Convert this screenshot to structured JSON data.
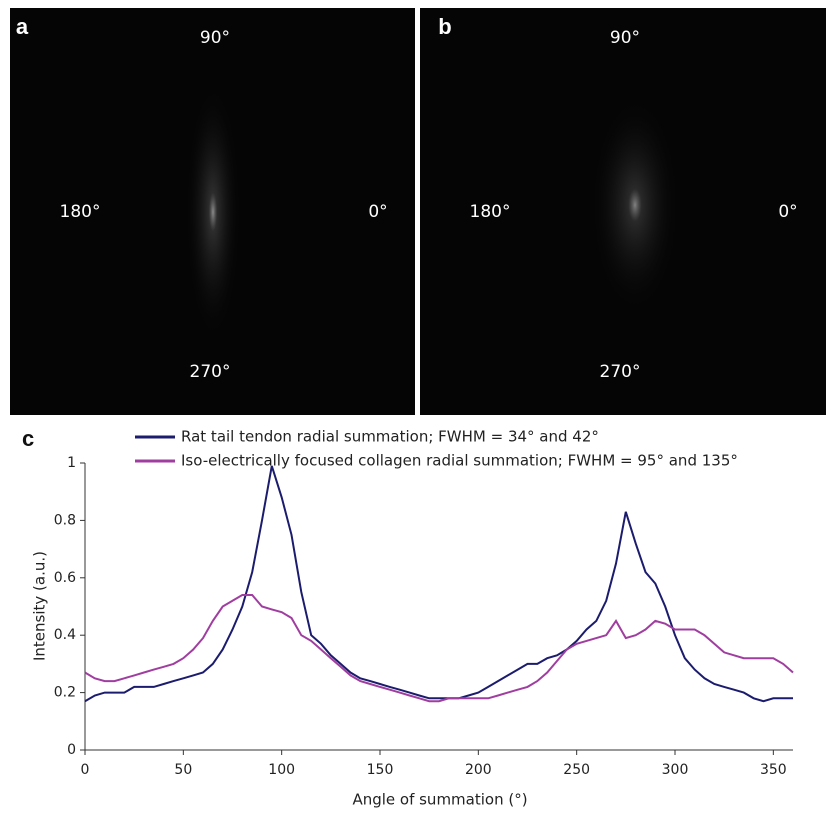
{
  "panels": [
    {
      "label": "a",
      "top": "90°",
      "left": "180°",
      "right": "0°",
      "bottom": "270°"
    },
    {
      "label": "b",
      "top": "90°",
      "left": "180°",
      "right": "0°",
      "bottom": "270°"
    }
  ],
  "chart_data": {
    "type": "line",
    "label": "c",
    "x_label": "Angle of summation (°)",
    "y_label": "Intensity (a.u.)",
    "xlim": [
      0,
      360
    ],
    "ylim": [
      0,
      1
    ],
    "xticks": [
      0,
      50,
      100,
      150,
      200,
      250,
      300,
      350
    ],
    "yticks": [
      0,
      0.2,
      0.4,
      0.6,
      0.8,
      1
    ],
    "x": [
      0,
      5,
      10,
      15,
      20,
      25,
      30,
      35,
      40,
      45,
      50,
      55,
      60,
      65,
      70,
      75,
      80,
      85,
      90,
      95,
      100,
      105,
      110,
      115,
      120,
      125,
      130,
      135,
      140,
      145,
      150,
      155,
      160,
      165,
      170,
      175,
      180,
      185,
      190,
      195,
      200,
      205,
      210,
      215,
      220,
      225,
      230,
      235,
      240,
      245,
      250,
      255,
      260,
      265,
      270,
      275,
      280,
      285,
      290,
      295,
      300,
      305,
      310,
      315,
      320,
      325,
      330,
      335,
      340,
      345,
      350,
      355,
      360
    ],
    "series": [
      {
        "name": "Rat tail tendon radial summation; FWHM = 34° and 42°",
        "color": "#1c1c6e",
        "values": [
          0.17,
          0.19,
          0.2,
          0.2,
          0.2,
          0.22,
          0.22,
          0.22,
          0.23,
          0.24,
          0.25,
          0.26,
          0.27,
          0.3,
          0.35,
          0.42,
          0.5,
          0.62,
          0.8,
          0.99,
          0.88,
          0.75,
          0.55,
          0.4,
          0.37,
          0.33,
          0.3,
          0.27,
          0.25,
          0.24,
          0.23,
          0.22,
          0.21,
          0.2,
          0.19,
          0.18,
          0.18,
          0.18,
          0.18,
          0.19,
          0.2,
          0.22,
          0.24,
          0.26,
          0.28,
          0.3,
          0.3,
          0.32,
          0.33,
          0.35,
          0.38,
          0.42,
          0.45,
          0.52,
          0.65,
          0.83,
          0.72,
          0.62,
          0.58,
          0.5,
          0.4,
          0.32,
          0.28,
          0.25,
          0.23,
          0.22,
          0.21,
          0.2,
          0.18,
          0.17,
          0.18,
          0.18,
          0.18
        ]
      },
      {
        "name": "Iso-electrically focused collagen radial summation; FWHM = 95° and 135°",
        "color": "#a03ea0",
        "values": [
          0.27,
          0.25,
          0.24,
          0.24,
          0.25,
          0.26,
          0.27,
          0.28,
          0.29,
          0.3,
          0.32,
          0.35,
          0.39,
          0.45,
          0.5,
          0.52,
          0.54,
          0.54,
          0.5,
          0.49,
          0.48,
          0.46,
          0.4,
          0.38,
          0.35,
          0.32,
          0.29,
          0.26,
          0.24,
          0.23,
          0.22,
          0.21,
          0.2,
          0.19,
          0.18,
          0.17,
          0.17,
          0.18,
          0.18,
          0.18,
          0.18,
          0.18,
          0.19,
          0.2,
          0.21,
          0.22,
          0.24,
          0.27,
          0.31,
          0.35,
          0.37,
          0.38,
          0.39,
          0.4,
          0.45,
          0.39,
          0.4,
          0.42,
          0.45,
          0.44,
          0.42,
          0.42,
          0.42,
          0.4,
          0.37,
          0.34,
          0.33,
          0.32,
          0.32,
          0.32,
          0.32,
          0.3,
          0.27
        ]
      }
    ]
  }
}
